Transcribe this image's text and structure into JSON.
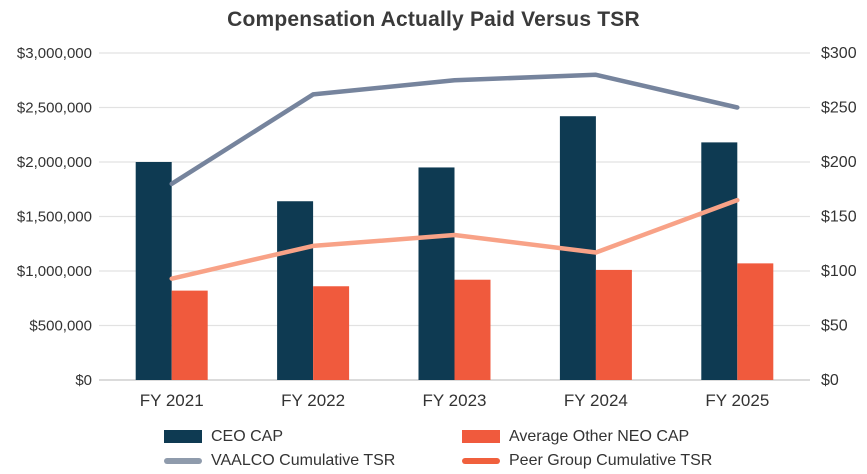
{
  "title": "Compensation Actually Paid Versus TSR",
  "chart_data": {
    "type": "bar",
    "subtype": "combo dual-axis: grouped bars (left axis) + lines (right axis)",
    "title": "Compensation Actually Paid Versus TSR",
    "categories": [
      "FY 2021",
      "FY 2022",
      "FY 2023",
      "FY 2024",
      "FY 2025"
    ],
    "bar_series": [
      {
        "name": "CEO CAP",
        "axis": "left",
        "color": "#0e3a52",
        "values": [
          2000000,
          1640000,
          1950000,
          2420000,
          2180000
        ]
      },
      {
        "name": "Average Other NEO CAP",
        "axis": "left",
        "color": "#f05a3d",
        "values": [
          820000,
          860000,
          920000,
          1010000,
          1070000
        ]
      }
    ],
    "line_series": [
      {
        "name": "VAALCO Cumulative TSR",
        "axis": "right",
        "color": "#76849d",
        "values": [
          180,
          262,
          275,
          280,
          250
        ]
      },
      {
        "name": "Peer Group Cumulative TSR",
        "axis": "right",
        "color": "#f8a287",
        "values": [
          93,
          123,
          133,
          117,
          165
        ]
      }
    ],
    "left_axis": {
      "min": 0,
      "max": 3000000,
      "tick_values": [
        0,
        500000,
        1000000,
        1500000,
        2000000,
        2500000,
        3000000
      ],
      "tick_labels": [
        "$0",
        "$500,000",
        "$1,000,000",
        "$1,500,000",
        "$2,000,000",
        "$2,500,000",
        "$3,000,000"
      ]
    },
    "right_axis": {
      "min": 0,
      "max": 300,
      "tick_values": [
        0,
        50,
        100,
        150,
        200,
        250,
        300
      ],
      "tick_labels": [
        "$0",
        "$50",
        "$100",
        "$150",
        "$200",
        "$250",
        "$300"
      ]
    },
    "grid": true,
    "gridline_color": "#e2e2e2",
    "legend_position": "bottom"
  },
  "legend": {
    "items": [
      {
        "label": "CEO CAP",
        "swatch": "bar",
        "color": "#0e3a52"
      },
      {
        "label": "VAALCO Cumulative TSR",
        "swatch": "line",
        "color": "#8f9bac"
      },
      {
        "label": "Average Other NEO CAP",
        "swatch": "bar",
        "color": "#f05a3d"
      },
      {
        "label": "Peer Group Cumulative TSR",
        "swatch": "line",
        "color": "#f0603d"
      }
    ]
  }
}
